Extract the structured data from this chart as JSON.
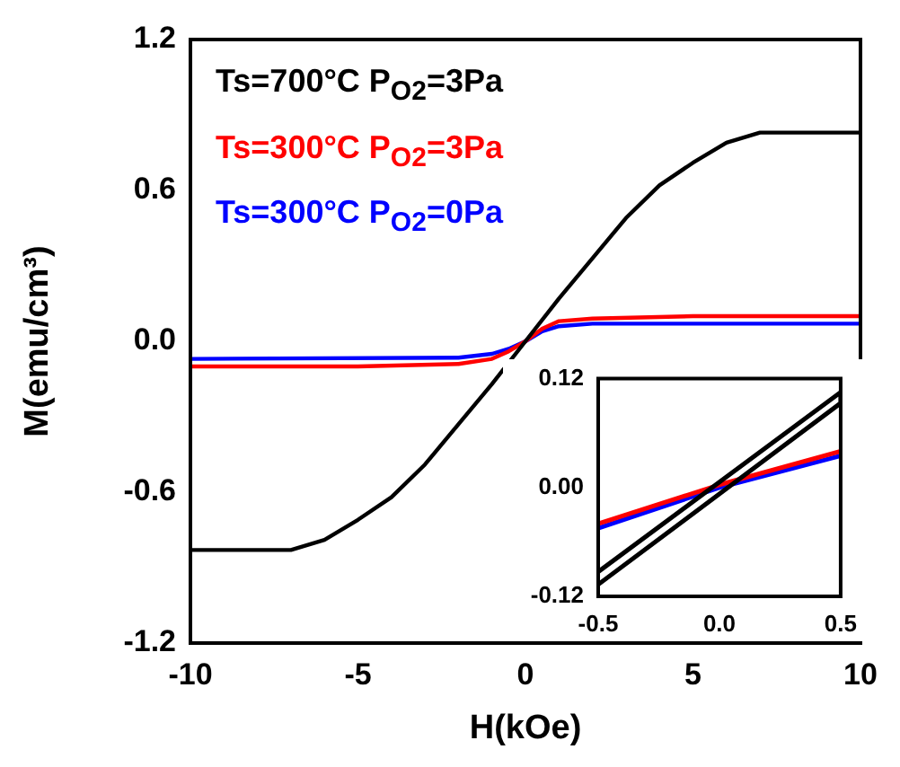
{
  "chart_data": [
    {
      "type": "line",
      "xlabel": "H(kOe)",
      "ylabel": "M(emu/cm³)",
      "xlim": [
        -10,
        10
      ],
      "ylim": [
        -1.2,
        1.2
      ],
      "xticks": [
        -10,
        -5,
        {
          "value": 0,
          "label": "0"
        },
        5,
        10
      ],
      "yticks": [
        -1.2,
        -0.6,
        {
          "value": 0,
          "label": "0.0"
        },
        0.6,
        1.2
      ],
      "legend": "top left",
      "marker": "none",
      "line_style": "solid",
      "series": [
        {
          "name": "Ts=700°C P$_{O2}$=3Pa",
          "color": "#000000",
          "x": [
            -10,
            -8,
            -7,
            -6,
            -5,
            -4,
            -3,
            -2,
            -1,
            0,
            1,
            2,
            3,
            4,
            5,
            6,
            7,
            8,
            10
          ],
          "values": [
            -0.83,
            -0.83,
            -0.83,
            -0.79,
            -0.71,
            -0.62,
            -0.49,
            -0.33,
            -0.17,
            0,
            0.17,
            0.33,
            0.49,
            0.62,
            0.71,
            0.79,
            0.83,
            0.83,
            0.83
          ]
        },
        {
          "name": "Ts=300°C P$_{O2}$=3Pa",
          "color": "#ff0000",
          "x": [
            -10,
            -5,
            -2,
            -1,
            -0.5,
            0,
            0.5,
            1,
            2,
            5,
            10
          ],
          "values": [
            -0.1,
            -0.1,
            -0.09,
            -0.07,
            -0.04,
            0,
            0.05,
            0.08,
            0.09,
            0.1,
            0.1
          ]
        },
        {
          "name": "Ts=300°C P$_{O2}$=0Pa",
          "color": "#0000ff",
          "x": [
            -10,
            -2,
            -1,
            -0.5,
            0,
            0.5,
            1,
            2,
            10
          ],
          "values": [
            -0.07,
            -0.065,
            -0.05,
            -0.03,
            0,
            0.04,
            0.06,
            0.07,
            0.07
          ]
        }
      ]
    },
    {
      "type": "line",
      "xlim": [
        -0.5,
        0.5
      ],
      "ylim": [
        -0.12,
        0.12
      ],
      "xticks": [
        -0.5,
        {
          "value": 0,
          "label": "0.0"
        },
        0.5
      ],
      "yticks": [
        -0.12,
        {
          "value": 0,
          "label": "0.00"
        },
        0.12
      ],
      "marker": "none",
      "line_style": "solid",
      "series": [
        {
          "color": "#000000",
          "x": [
            -0.5,
            0.5,
            0.5,
            -0.5
          ],
          "values": [
            -0.107,
            0.093,
            0.105,
            -0.093
          ]
        },
        {
          "color": "#ff0000",
          "x": [
            -0.5,
            0,
            0.5
          ],
          "values": [
            -0.04,
            0.003,
            0.04
          ]
        },
        {
          "color": "#0000ff",
          "x": [
            -0.5,
            0,
            0.5
          ],
          "values": [
            -0.045,
            0,
            0.035
          ]
        }
      ]
    }
  ]
}
